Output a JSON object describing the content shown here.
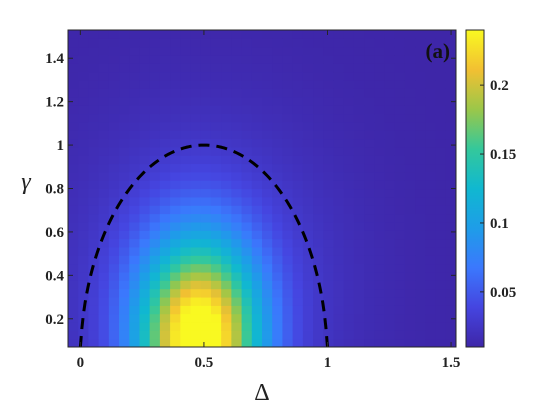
{
  "chart_data": {
    "type": "heatmap",
    "panel_label": "(a)",
    "xlabel": "Δ",
    "ylabel": "γ",
    "xlim": [
      -0.05,
      1.52
    ],
    "ylim": [
      0.07,
      1.53
    ],
    "xticks": [
      0,
      0.5,
      1,
      1.5
    ],
    "xtick_labels": [
      "0",
      "0.5",
      "1",
      "1.5"
    ],
    "yticks": [
      0.2,
      0.4,
      0.6,
      0.8,
      1,
      1.2,
      1.4
    ],
    "ytick_labels": [
      "0.2",
      "0.4",
      "0.6",
      "0.8",
      "1",
      "1.2",
      "1.4"
    ],
    "colorbar": {
      "colormap": "parula",
      "range": [
        0.01,
        0.24
      ],
      "ticks": [
        0.05,
        0.1,
        0.15,
        0.2
      ],
      "tick_labels": [
        "0.05",
        "0.1",
        "0.15",
        "0.2"
      ]
    },
    "grid": {
      "nx": 38,
      "ny": 38,
      "peak": {
        "x": 0.48,
        "y": 0.1,
        "value": 0.24
      },
      "background_value": 0.01
    },
    "boundary_curve": {
      "style": "dashed",
      "color": "#000000",
      "shape": "semi-ellipse",
      "center_x": 0.5,
      "x_range": [
        0,
        1
      ],
      "y_max": 1.0
    }
  }
}
